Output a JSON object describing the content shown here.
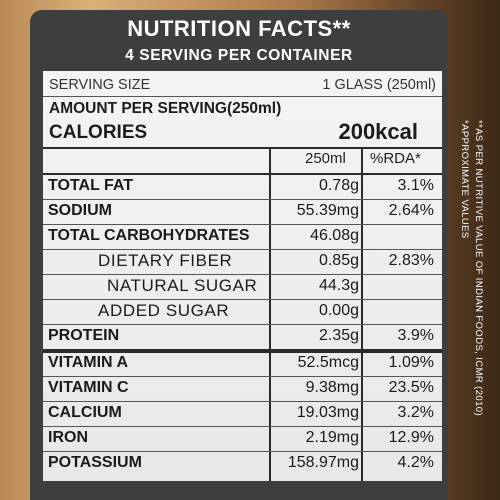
{
  "header": {
    "title": "NUTRITION FACTS**",
    "subtitle": "4 SERVING PER CONTAINER"
  },
  "serving": {
    "label": "SERVING SIZE",
    "value": "1 GLASS (250ml)"
  },
  "amount_per_serving": "AMOUNT PER SERVING(250ml)",
  "calories": {
    "label": "CALORIES",
    "value": "200kcal"
  },
  "columns": {
    "amount": "250ml",
    "rda": "%RDA*"
  },
  "nutrients": [
    {
      "name": "TOTAL FAT",
      "value": "0.78g",
      "rda": "3.1%"
    },
    {
      "name": "SODIUM",
      "value": "55.39mg",
      "rda": "2.64%"
    },
    {
      "name": "TOTAL CARBOHYDRATES",
      "value": "46.08g",
      "rda": ""
    },
    {
      "name": "DIETARY FIBER",
      "value": "0.85g",
      "rda": "2.83%"
    },
    {
      "name": "NATURAL SUGAR",
      "value": "44.3g",
      "rda": ""
    },
    {
      "name": "ADDED SUGAR",
      "value": "0.00g",
      "rda": ""
    },
    {
      "name": "PROTEIN",
      "value": "2.35g",
      "rda": "3.9%"
    },
    {
      "name": "VITAMIN A",
      "value": "52.5mcg",
      "rda": "1.09%"
    },
    {
      "name": "VITAMIN C",
      "value": "9.38mg",
      "rda": "23.5%"
    },
    {
      "name": "CALCIUM",
      "value": "19.03mg",
      "rda": "3.2%"
    },
    {
      "name": "IRON",
      "value": "2.19mg",
      "rda": "12.9%"
    },
    {
      "name": "POTASSIUM",
      "value": "158.97mg",
      "rda": "4.2%"
    }
  ],
  "side_notes": {
    "approx": "*APPROXIMATE VALUES",
    "source": "**AS PER NUTRITIVE VALUE OF INDIAN FOODS, ICMR (2010)"
  },
  "colors": {
    "panel": "#3d3e40",
    "card": "#eeeeee",
    "header_text": "#ffffff",
    "rules": "#2a2a2a"
  }
}
